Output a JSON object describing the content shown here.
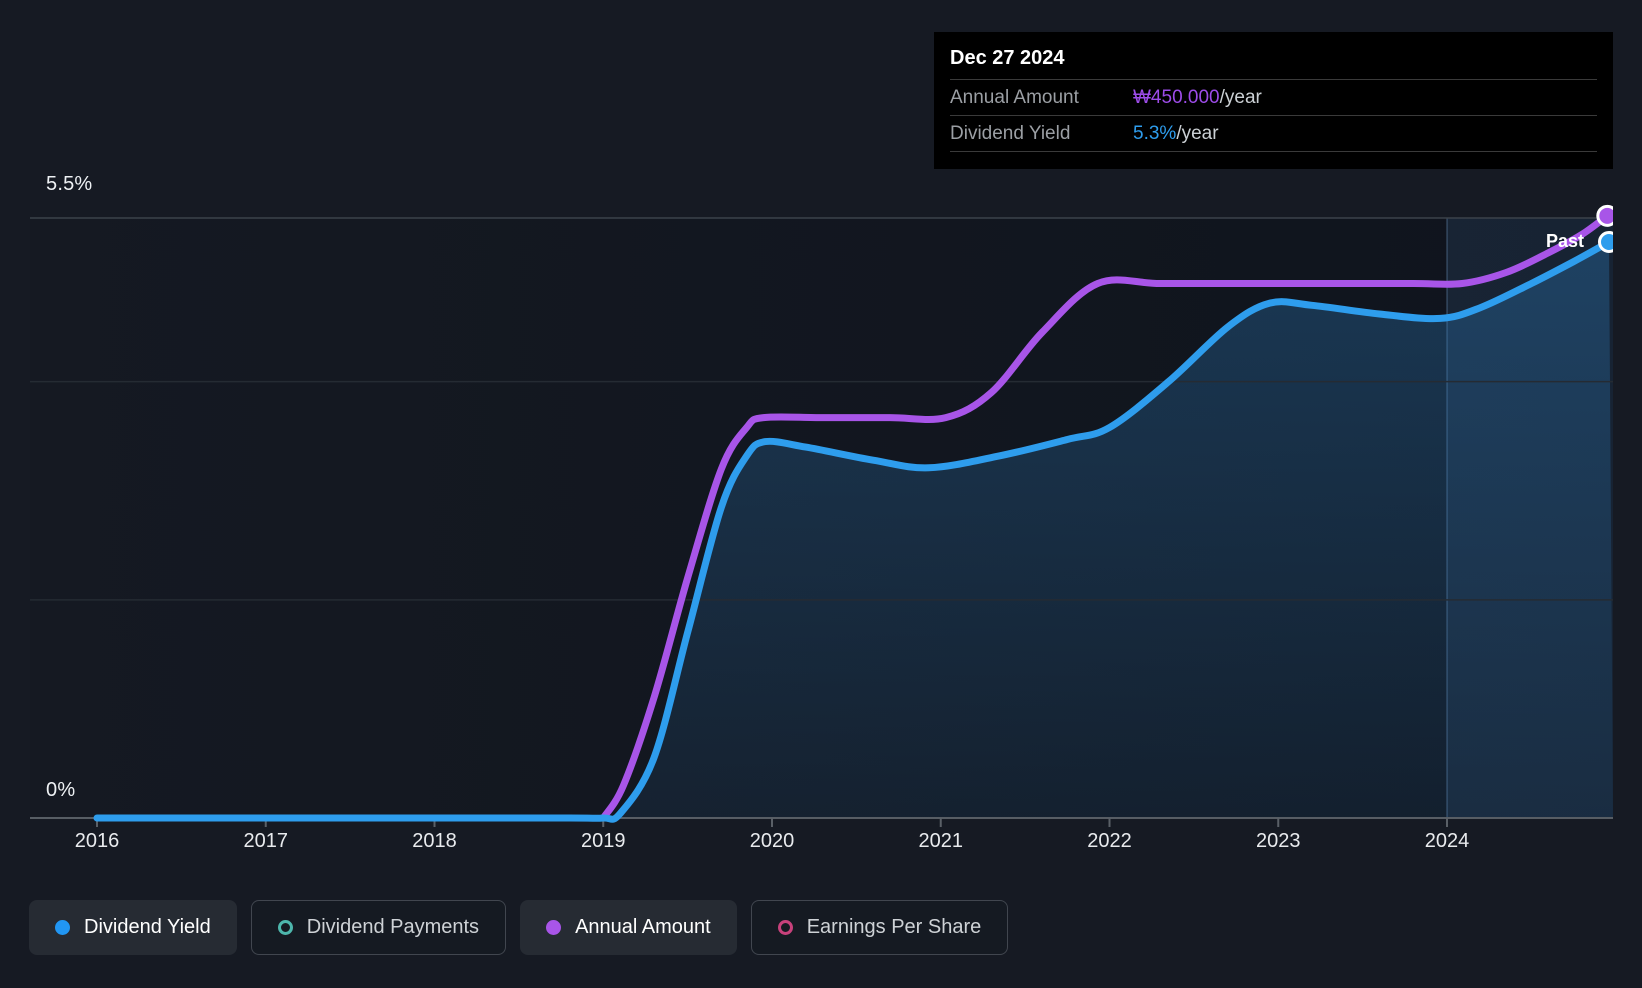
{
  "tooltip": {
    "date": "Dec 27 2024",
    "rows": [
      {
        "label": "Annual Amount",
        "value": "₩450.000",
        "suffix": "/year",
        "color": "#9d4ce8"
      },
      {
        "label": "Dividend Yield",
        "value": "5.3%",
        "suffix": "/year",
        "color": "#2e9ded"
      }
    ]
  },
  "chart": {
    "past_label": "Past",
    "y_axis": {
      "top_label": "5.5%",
      "zero_label": "0%"
    },
    "x_labels": [
      "2016",
      "2017",
      "2018",
      "2019",
      "2020",
      "2021",
      "2022",
      "2023",
      "2024"
    ]
  },
  "legend": [
    {
      "label": "Dividend Yield",
      "marker": "filled-dot",
      "color": "#2196f3",
      "active": true
    },
    {
      "label": "Dividend Payments",
      "marker": "ring",
      "color": "#4db6ac",
      "active": false
    },
    {
      "label": "Annual Amount",
      "marker": "filled-dot",
      "color": "#a855e8",
      "active": true
    },
    {
      "label": "Earnings Per Share",
      "marker": "ring",
      "color": "#c7417b",
      "active": false
    }
  ],
  "chart_data": {
    "type": "line",
    "title": "Dividend history (Past)",
    "x_unit": "year",
    "x_range": [
      2016,
      2025
    ],
    "y_unit": "dividend yield %",
    "y_range": [
      0,
      5.5
    ],
    "gridlines_pct": [
      0,
      2,
      4,
      5.5
    ],
    "past_region_start_x": 2024.0,
    "tooltip_point": {
      "date": "Dec 27 2024",
      "annual_amount": "₩450.000/year",
      "dividend_yield_pct": 5.3
    },
    "series": [
      {
        "name": "Annual Amount",
        "color": "#a855e8",
        "note": "plotted against hidden amount scale; values below are yield-axis equivalents read from pixels; final value ₩450.000/year",
        "points": [
          [
            2019.0,
            0
          ],
          [
            2019.12,
            0.3
          ],
          [
            2019.3,
            1.1
          ],
          [
            2019.5,
            2.2
          ],
          [
            2019.7,
            3.2
          ],
          [
            2019.85,
            3.58
          ],
          [
            2019.95,
            3.67
          ],
          [
            2020.3,
            3.67
          ],
          [
            2020.7,
            3.67
          ],
          [
            2021.03,
            3.67
          ],
          [
            2021.3,
            3.9
          ],
          [
            2021.6,
            4.45
          ],
          [
            2021.93,
            4.9
          ],
          [
            2022.3,
            4.9
          ],
          [
            2022.8,
            4.9
          ],
          [
            2023.3,
            4.9
          ],
          [
            2023.8,
            4.9
          ],
          [
            2024.09,
            4.9
          ],
          [
            2024.35,
            5.0
          ],
          [
            2024.6,
            5.18
          ],
          [
            2024.8,
            5.35
          ],
          [
            2024.95,
            5.52
          ]
        ]
      },
      {
        "name": "Dividend Yield",
        "color": "#2e9ded",
        "final_value_pct": 5.3,
        "points": [
          [
            2016.0,
            0
          ],
          [
            2017.0,
            0
          ],
          [
            2018.0,
            0
          ],
          [
            2018.8,
            0
          ],
          [
            2019.0,
            0
          ],
          [
            2019.1,
            0.04
          ],
          [
            2019.3,
            0.55
          ],
          [
            2019.5,
            1.7
          ],
          [
            2019.7,
            2.85
          ],
          [
            2019.85,
            3.32
          ],
          [
            2019.96,
            3.45
          ],
          [
            2020.2,
            3.4
          ],
          [
            2020.6,
            3.28
          ],
          [
            2020.93,
            3.21
          ],
          [
            2021.35,
            3.32
          ],
          [
            2021.75,
            3.47
          ],
          [
            2022.0,
            3.58
          ],
          [
            2022.35,
            4.0
          ],
          [
            2022.7,
            4.5
          ],
          [
            2022.95,
            4.72
          ],
          [
            2023.2,
            4.7
          ],
          [
            2023.6,
            4.62
          ],
          [
            2023.96,
            4.58
          ],
          [
            2024.2,
            4.68
          ],
          [
            2024.5,
            4.9
          ],
          [
            2024.75,
            5.1
          ],
          [
            2024.96,
            5.28
          ]
        ]
      }
    ]
  }
}
